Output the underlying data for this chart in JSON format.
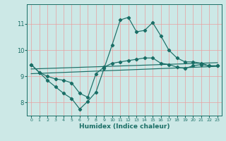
{
  "title": "",
  "xlabel": "Humidex (Indice chaleur)",
  "bg_color": "#cce8e6",
  "grid_color_v": "#e8a0a0",
  "grid_color_h": "#e8a0a0",
  "line_color": "#1a6e66",
  "xlim": [
    -0.5,
    23.5
  ],
  "ylim": [
    7.5,
    11.75
  ],
  "yticks": [
    8,
    9,
    10,
    11
  ],
  "xticks": [
    0,
    1,
    2,
    3,
    4,
    5,
    6,
    7,
    8,
    9,
    10,
    11,
    12,
    13,
    14,
    15,
    16,
    17,
    18,
    19,
    20,
    21,
    22,
    23
  ],
  "line1_x": [
    0,
    1,
    2,
    3,
    4,
    5,
    6,
    7,
    8,
    9,
    10,
    11,
    12,
    13,
    14,
    15,
    16,
    17,
    18,
    19,
    20,
    21,
    22,
    23
  ],
  "line1_y": [
    9.45,
    9.15,
    8.85,
    8.6,
    8.35,
    8.15,
    7.75,
    8.05,
    8.4,
    9.3,
    10.2,
    11.15,
    11.25,
    10.7,
    10.75,
    11.05,
    10.55,
    10.0,
    9.7,
    9.55,
    9.55,
    9.5,
    9.4,
    9.4
  ],
  "line2_x": [
    0,
    1,
    2,
    3,
    4,
    5,
    6,
    7,
    8,
    9,
    10,
    11,
    12,
    13,
    14,
    15,
    16,
    17,
    18,
    19,
    20,
    21,
    22,
    23
  ],
  "line2_y": [
    9.45,
    9.15,
    9.0,
    8.9,
    8.85,
    8.75,
    8.35,
    8.2,
    9.1,
    9.35,
    9.5,
    9.55,
    9.6,
    9.65,
    9.7,
    9.7,
    9.5,
    9.45,
    9.35,
    9.3,
    9.4,
    9.45,
    9.4,
    9.4
  ],
  "line3_x": [
    0,
    23
  ],
  "line3_y": [
    9.1,
    9.38
  ],
  "line4_x": [
    0,
    23
  ],
  "line4_y": [
    9.28,
    9.52
  ]
}
